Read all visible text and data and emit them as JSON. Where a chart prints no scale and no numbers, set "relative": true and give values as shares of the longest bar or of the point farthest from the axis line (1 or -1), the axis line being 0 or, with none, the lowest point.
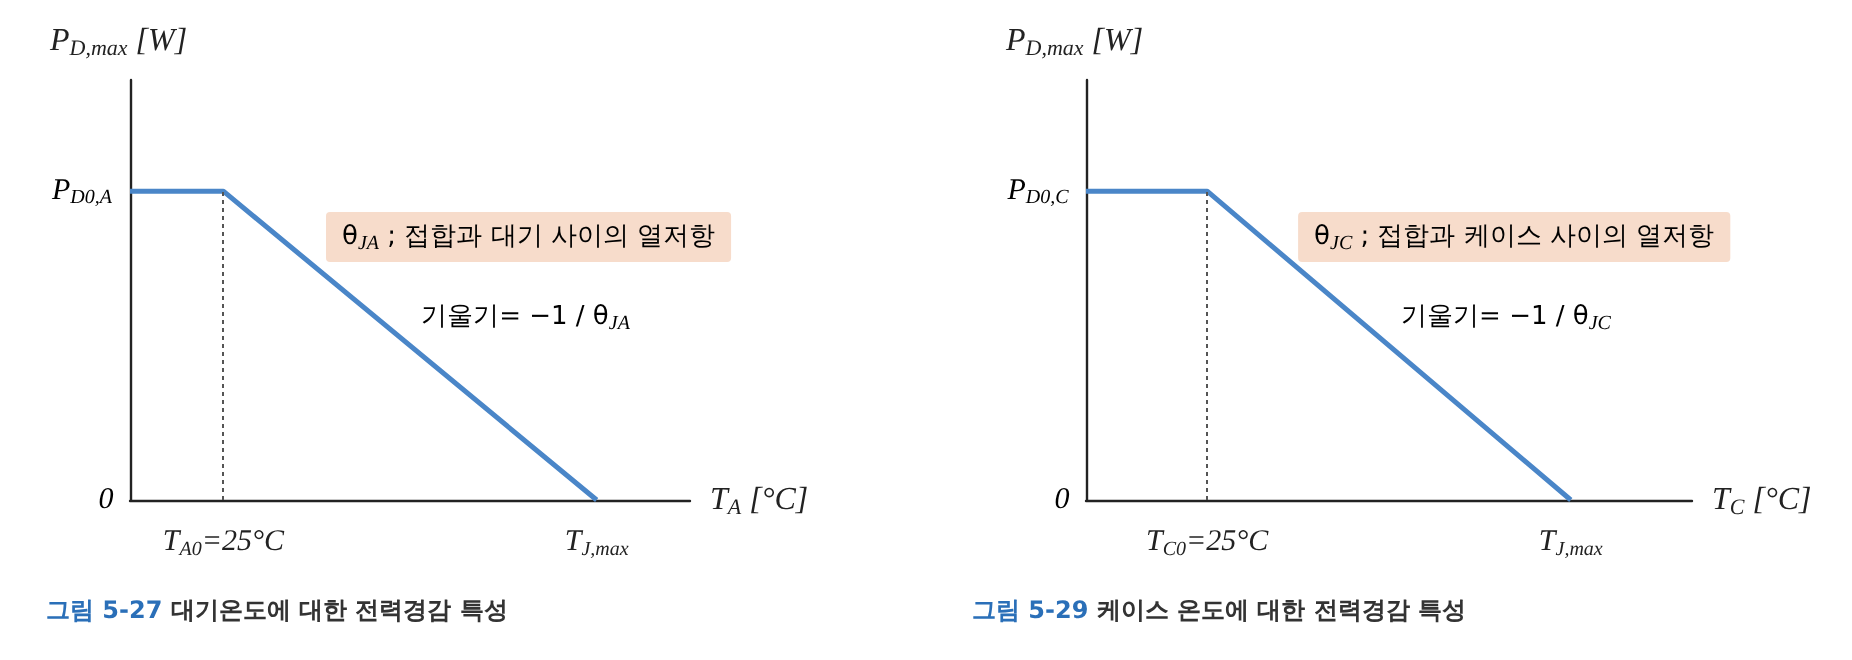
{
  "chart_data": [
    {
      "type": "line",
      "title": "그림 5-27 대기온도에 대한 전력경감 특성",
      "ylabel": "P$_{D,max}$ [W]",
      "xlabel": "T$_{A}$ [°C]",
      "relative": true,
      "categories": [
        null,
        "T$_{A0}$=25°C",
        null,
        null,
        null,
        "T$_{J,max}$",
        null
      ],
      "series": [
        {
          "color": "#4a86c8",
          "values": [
            1,
            1,
            null,
            null,
            null,
            0,
            null
          ]
        }
      ],
      "ref_lines": [
        {
          "axis": "x",
          "value": "T$_{A0}$=25°C",
          "color": "#555555",
          "line_style": "dotted"
        }
      ],
      "annotations": [
        "P$_{D0,A}$",
        "0",
        "θ$_{JA}$ ; 접합과 대기 사이의 열저항",
        "기울기= −1 / θ$_{JA}$"
      ],
      "grid": false,
      "marker": "none",
      "line_style": "solid"
    },
    {
      "type": "line",
      "title": "그림 5-29 케이스 온도에 대한 전력경감 특성",
      "ylabel": "P$_{D,max}$ [W]",
      "xlabel": "T$_{C}$ [°C]",
      "relative": true,
      "categories": [
        null,
        "T$_{C0}$=25°C",
        null,
        null,
        "T$_{J,max}$",
        null
      ],
      "series": [
        {
          "color": "#4a86c8",
          "values": [
            1,
            1,
            null,
            null,
            0,
            null
          ]
        }
      ],
      "ref_lines": [
        {
          "axis": "x",
          "value": "T$_{C0}$=25°C",
          "color": "#555555",
          "line_style": "dotted"
        }
      ],
      "annotations": [
        "P$_{D0,C}$",
        "0",
        "θ$_{JC}$ ; 접합과 케이스 사이의 열저항",
        "기울기= −1 / θ$_{JC}$"
      ],
      "grid": false,
      "marker": "none",
      "line_style": "solid"
    }
  ]
}
